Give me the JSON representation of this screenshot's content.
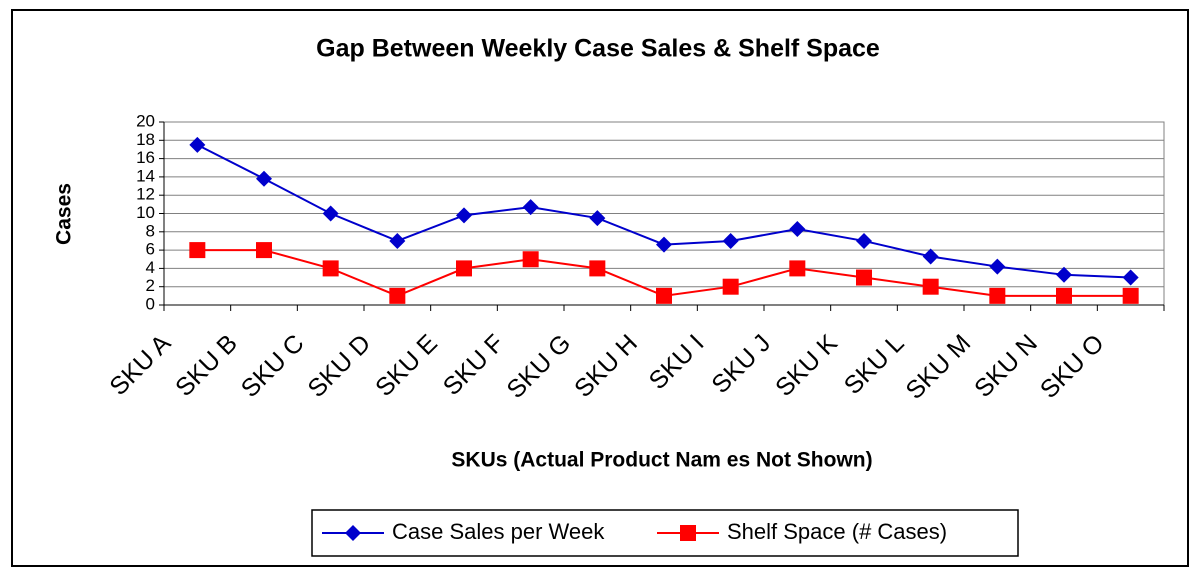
{
  "chart_data": {
    "type": "line",
    "title": "Gap Between Weekly Case Sales & Shelf Space",
    "y_label": "Cases",
    "x_label": "SKUs (Actual Product Nam es Not Shown)",
    "categories": [
      "SKU A",
      "SKU B",
      "SKU C",
      "SKU D",
      "SKU E",
      "SKU F",
      "SKU G",
      "SKU H",
      "SKU I",
      "SKU J",
      "SKU K",
      "SKU L",
      "SKU M",
      "SKU N",
      "SKU O"
    ],
    "series": [
      {
        "name": "Case Sales per Week",
        "color": "#0000cc",
        "marker": "diamond",
        "values": [
          17.5,
          13.8,
          10,
          7,
          9.8,
          10.7,
          9.5,
          6.6,
          7,
          8.3,
          7,
          5.3,
          4.2,
          3.3,
          3
        ]
      },
      {
        "name": "Shelf Space (# Cases)",
        "color": "#ff0000",
        "marker": "square",
        "values": [
          6,
          6,
          4,
          1,
          4,
          5,
          4,
          1,
          2,
          4,
          3,
          2,
          1,
          1,
          1
        ]
      }
    ],
    "ylim": [
      0,
      20
    ],
    "yticks": [
      0,
      2,
      4,
      6,
      8,
      10,
      12,
      14,
      16,
      18,
      20
    ],
    "grid": true,
    "legend": "bottom"
  }
}
